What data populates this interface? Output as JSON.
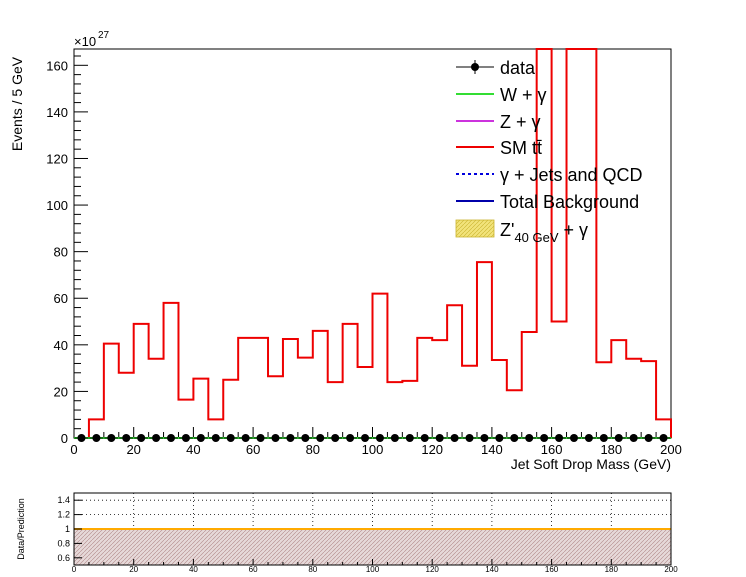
{
  "chart_data": [
    {
      "type": "bar",
      "xlabel": "Jet Soft Drop Mass (GeV)",
      "ylabel": "Events / 5 GeV",
      "y_exponent_label": "×10",
      "y_exponent_power": "27",
      "xlim": [
        0,
        200
      ],
      "ylim": [
        0,
        167
      ],
      "x_ticks": [
        "0",
        "20",
        "40",
        "60",
        "80",
        "100",
        "120",
        "140",
        "160",
        "180",
        "200"
      ],
      "y_ticks": [
        "0",
        "20",
        "40",
        "60",
        "80",
        "100",
        "120",
        "140",
        "160"
      ],
      "legend_position": "top-right",
      "legend": [
        {
          "label": "data",
          "style": "marker",
          "color": "#000000"
        },
        {
          "label": "W + γ",
          "style": "line",
          "color": "#33dd33"
        },
        {
          "label": "Z + γ",
          "style": "line",
          "color": "#cc33dd"
        },
        {
          "label": "SM tt̄",
          "style": "line",
          "color": "#ee0000"
        },
        {
          "label": "γ + Jets and QCD",
          "style": "dashed",
          "color": "#0000dd"
        },
        {
          "label": "Total Background",
          "style": "line",
          "color": "#0000aa"
        },
        {
          "label": "Z'",
          "sub": "40 GeV",
          "tail": " + γ",
          "style": "fill",
          "color": "#e8d64a"
        }
      ],
      "bin_edges": [
        0,
        5,
        10,
        15,
        20,
        25,
        30,
        35,
        40,
        45,
        50,
        55,
        60,
        65,
        70,
        75,
        80,
        85,
        90,
        95,
        100,
        105,
        110,
        115,
        120,
        125,
        130,
        135,
        140,
        145,
        150,
        155,
        160,
        165,
        170,
        175,
        180,
        185,
        190,
        195,
        200
      ],
      "series": [
        {
          "name": "SM tt̄",
          "color": "#ee0000",
          "values": [
            0,
            8,
            40.5,
            28,
            49,
            34,
            58,
            16.5,
            25.5,
            8,
            25,
            43,
            43,
            26.5,
            42.5,
            34.5,
            46,
            24,
            49,
            30.5,
            62,
            24,
            24.5,
            43,
            42,
            57,
            31,
            75.5,
            33.5,
            20.5,
            45.5,
            167,
            50,
            167,
            167,
            32.5,
            42,
            34,
            33,
            8
          ]
        },
        {
          "name": "data",
          "color": "#000000",
          "values": [
            0,
            0,
            0,
            0,
            0,
            0,
            0,
            0,
            0,
            0,
            0,
            0,
            0,
            0,
            0,
            0,
            0,
            0,
            0,
            0,
            0,
            0,
            0,
            0,
            0,
            0,
            0,
            0,
            0,
            0,
            0,
            0,
            0,
            0,
            0,
            0,
            0,
            0,
            0,
            0
          ]
        }
      ]
    },
    {
      "type": "line",
      "ylabel": "Data/Prediction",
      "xlim": [
        0,
        200
      ],
      "ylim": [
        0.5,
        1.5
      ],
      "x_ticks": [
        "0",
        "20",
        "40",
        "60",
        "80",
        "100",
        "120",
        "140",
        "160",
        "180",
        "200"
      ],
      "y_ticks": [
        "0.6",
        "0.8",
        "1",
        "1.2",
        "1.4"
      ],
      "grid": true,
      "reference_line": 1,
      "uncertainty_band": [
        0,
        1
      ],
      "reference_color": "#ffaa00"
    }
  ]
}
